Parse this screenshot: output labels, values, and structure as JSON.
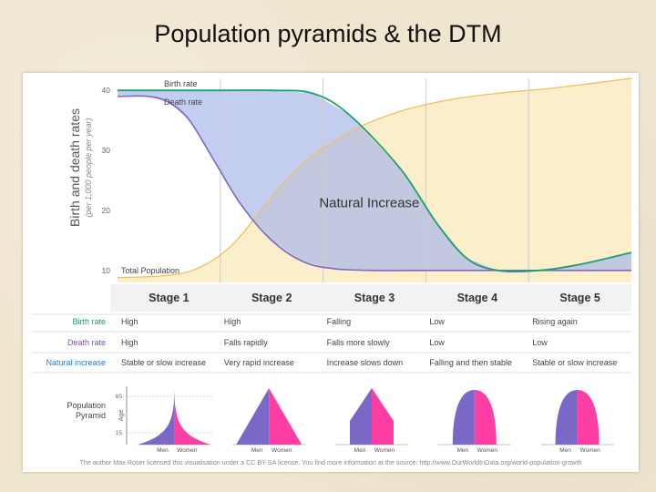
{
  "slide": {
    "title": "Population pyramids & the DTM"
  },
  "chart_data": {
    "type": "area",
    "ylabel": "Birth and death rates",
    "ylabel_sub": "(per 1,000 people per year)",
    "yticks": [
      10,
      20,
      30,
      40
    ],
    "ylim": [
      8,
      42
    ],
    "xlim": [
      0,
      100
    ],
    "grid": true,
    "series": [
      {
        "name": "Birth rate",
        "color": "#1f9e6e",
        "x": [
          0,
          20,
          30,
          38,
          45,
          55,
          62,
          68,
          74,
          82,
          90,
          100
        ],
        "values": [
          40,
          40,
          40,
          39.5,
          36,
          27,
          18,
          12,
          10,
          10,
          11,
          13
        ]
      },
      {
        "name": "Death rate",
        "color": "#7b67c5",
        "x": [
          0,
          6,
          10,
          14,
          19,
          24,
          30,
          36,
          42,
          50,
          60,
          80,
          100
        ],
        "values": [
          39,
          39,
          38,
          35,
          28,
          21,
          15,
          11.5,
          10.3,
          10,
          10,
          10,
          10
        ]
      },
      {
        "name": "Total Population",
        "color": "#f0c060",
        "x": [
          0,
          10,
          16,
          22,
          28,
          35,
          45,
          55,
          65,
          75,
          85,
          100
        ],
        "values": [
          8.8,
          9.2,
          10.5,
          14,
          20,
          27,
          33,
          36.5,
          38.5,
          39.6,
          40.4,
          42
        ]
      }
    ],
    "annotation": "Natural Increase",
    "stages": [
      "Stage 1",
      "Stage 2",
      "Stage 3",
      "Stage 4",
      "Stage 5"
    ],
    "stage_bounds": [
      0,
      20,
      40,
      60,
      80,
      100
    ],
    "table_rows": [
      {
        "label": "Birth rate",
        "color": "#1f9e6e",
        "cells": [
          "High",
          "High",
          "Falling",
          "Low",
          "Rising again"
        ]
      },
      {
        "label": "Death rate",
        "color": "#7b4fc2",
        "cells": [
          "High",
          "Falls rapidly",
          "Falls more slowly",
          "Low",
          "Low"
        ]
      },
      {
        "label": "Natural increase",
        "color": "#2b7fd4",
        "cells": [
          "Stable or slow increase",
          "Very rapid increase",
          "Increase slows down",
          "Falling and then stable",
          "Stable or slow increase"
        ]
      }
    ],
    "pyramid_label": [
      "Population",
      "Pyramid"
    ],
    "pyramid_axis": {
      "label": "Age",
      "ticks": [
        "65",
        "15"
      ]
    },
    "pyramid_sexes": [
      "Men",
      "Women"
    ],
    "pyramid_colors": {
      "men": "#7b67c5",
      "women": "#ff3ea5"
    },
    "pyramid_shapes": [
      "concave",
      "triangle",
      "narrow-top",
      "beehive",
      "beehive"
    ],
    "credit": "The author Max Roser licensed this visualisation under a CC BY-SA license. You find more information at the source: http://www.OurWorldInData.org/world-population-growth"
  }
}
